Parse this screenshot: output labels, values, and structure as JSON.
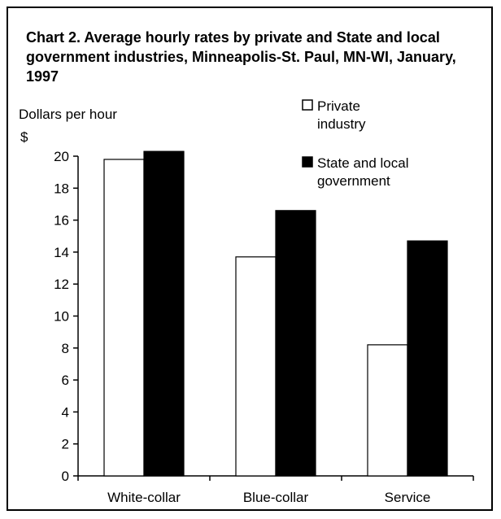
{
  "chart_data": {
    "type": "bar",
    "title": "Chart 2. Average hourly rates by private and State and local government industries, Minneapolis-St. Paul, MN-WI, January, 1997",
    "ylabel": "Dollars per hour",
    "yunit": "$",
    "xlabel": "",
    "categories": [
      "White-collar",
      "Blue-collar",
      "Service"
    ],
    "series": [
      {
        "name": "Private industry",
        "name_lines": [
          "Private",
          "industry"
        ],
        "color": "#ffffff",
        "values": [
          19.8,
          13.7,
          8.2
        ]
      },
      {
        "name": "State and local government",
        "name_lines": [
          "State and local",
          "government"
        ],
        "color": "#000000",
        "values": [
          20.3,
          16.6,
          14.7
        ]
      }
    ],
    "ylim": [
      0,
      20
    ],
    "yticks": [
      0,
      2,
      4,
      6,
      8,
      10,
      12,
      14,
      16,
      18,
      20
    ],
    "grid": false,
    "legend": "top-right"
  }
}
